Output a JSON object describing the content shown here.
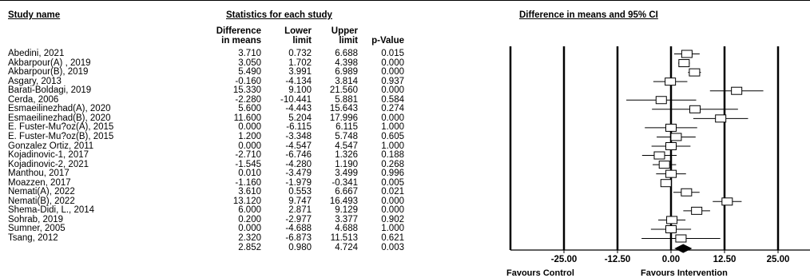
{
  "headers": {
    "study_name": "Study name",
    "statistics": "Statistics for each study",
    "ci": "Difference in means and 95% CI"
  },
  "subheaders": {
    "diff": [
      "Difference",
      "in means"
    ],
    "lower": [
      "Lower",
      "limit"
    ],
    "upper": [
      "Upper",
      "limit"
    ],
    "pvalue": "p-Value"
  },
  "rows": [
    {
      "study": "Abedini, 2021",
      "diff": "3.710",
      "lower": "0.732",
      "upper": "6.688",
      "p": "0.015"
    },
    {
      "study": "Akbarpour(A) , 2019",
      "diff": "3.050",
      "lower": "1.702",
      "upper": "4.398",
      "p": "0.000"
    },
    {
      "study": "Akbarpour(B), 2019",
      "diff": "5.490",
      "lower": "3.991",
      "upper": "6.989",
      "p": "0.000"
    },
    {
      "study": "Asgary, 2013",
      "diff": "-0.160",
      "lower": "-4.134",
      "upper": "3.814",
      "p": "0.937"
    },
    {
      "study": "Barati-Boldagi, 2019",
      "diff": "15.330",
      "lower": "9.100",
      "upper": "21.560",
      "p": "0.000"
    },
    {
      "study": "Cerda, 2006",
      "diff": "-2.280",
      "lower": "-10.441",
      "upper": "5.881",
      "p": "0.584"
    },
    {
      "study": "Esmaeilinezhad(A), 2020",
      "diff": "5.600",
      "lower": "-4.443",
      "upper": "15.643",
      "p": "0.274"
    },
    {
      "study": "Esmaeilinezhad(B), 2020",
      "diff": "11.600",
      "lower": "5.204",
      "upper": "17.996",
      "p": "0.000"
    },
    {
      "study": "E. Fuster-Mu?oz(A), 2015",
      "diff": "0.000",
      "lower": "-6.115",
      "upper": "6.115",
      "p": "1.000"
    },
    {
      "study": "E. Fuster-Mu?oz(B), 2015",
      "diff": "1.200",
      "lower": "-3.348",
      "upper": "5.748",
      "p": "0.605"
    },
    {
      "study": "Gonzalez Ortiz, 2011",
      "diff": "0.000",
      "lower": "-4.547",
      "upper": "4.547",
      "p": "1.000"
    },
    {
      "study": "Kojadinovic-1, 2017",
      "diff": "-2.710",
      "lower": "-6.746",
      "upper": "1.326",
      "p": "0.188"
    },
    {
      "study": "Kojadinovic-2, 2021",
      "diff": "-1.545",
      "lower": "-4.280",
      "upper": "1.190",
      "p": "0.268"
    },
    {
      "study": "Manthou, 2017",
      "diff": "0.010",
      "lower": "-3.479",
      "upper": "3.499",
      "p": "0.996"
    },
    {
      "study": "Moazzen, 2017",
      "diff": "-1.160",
      "lower": "-1.979",
      "upper": "-0.341",
      "p": "0.005"
    },
    {
      "study": "Nemati(A), 2022",
      "diff": "3.610",
      "lower": "0.553",
      "upper": "6.667",
      "p": "0.021"
    },
    {
      "study": "Nemati(B), 2022",
      "diff": "13.120",
      "lower": "9.747",
      "upper": "16.493",
      "p": "0.000"
    },
    {
      "study": "Shema-Didi, L., 2014",
      "diff": "6.000",
      "lower": "2.871",
      "upper": "9.129",
      "p": "0.000"
    },
    {
      "study": "Sohrab, 2019",
      "diff": "0.200",
      "lower": "-2.977",
      "upper": "3.377",
      "p": "0.902"
    },
    {
      "study": "Sumner, 2005",
      "diff": "0.000",
      "lower": "-4.688",
      "upper": "4.688",
      "p": "1.000"
    },
    {
      "study": "Tsang, 2012",
      "diff": "2.320",
      "lower": "-6.873",
      "upper": "11.513",
      "p": "0.621"
    }
  ],
  "pooled": {
    "study": "",
    "diff": "2.852",
    "lower": "0.980",
    "upper": "4.724",
    "p": "0.003"
  },
  "favours": {
    "left": "Favours Control",
    "right": "Favours Intervention"
  },
  "chart_data": {
    "type": "forest",
    "title": "Difference in means and 95% CI",
    "xlim": [
      -25,
      25
    ],
    "xticks": [
      "-25.00",
      "-12.50",
      "0.00",
      "12.50",
      "25.00"
    ],
    "xtick_values": [
      -25,
      -12.5,
      0,
      12.5,
      25
    ],
    "series": [
      {
        "name": "Abedini, 2021",
        "value": 3.71,
        "lower": 0.732,
        "upper": 6.688
      },
      {
        "name": "Akbarpour(A) , 2019",
        "value": 3.05,
        "lower": 1.702,
        "upper": 4.398
      },
      {
        "name": "Akbarpour(B), 2019",
        "value": 5.49,
        "lower": 3.991,
        "upper": 6.989
      },
      {
        "name": "Asgary, 2013",
        "value": -0.16,
        "lower": -4.134,
        "upper": 3.814
      },
      {
        "name": "Barati-Boldagi, 2019",
        "value": 15.33,
        "lower": 9.1,
        "upper": 21.56
      },
      {
        "name": "Cerda, 2006",
        "value": -2.28,
        "lower": -10.441,
        "upper": 5.881
      },
      {
        "name": "Esmaeilinezhad(A), 2020",
        "value": 5.6,
        "lower": -4.443,
        "upper": 15.643
      },
      {
        "name": "Esmaeilinezhad(B), 2020",
        "value": 11.6,
        "lower": 5.204,
        "upper": 17.996
      },
      {
        "name": "E. Fuster-Mu?oz(A), 2015",
        "value": 0.0,
        "lower": -6.115,
        "upper": 6.115
      },
      {
        "name": "E. Fuster-Mu?oz(B), 2015",
        "value": 1.2,
        "lower": -3.348,
        "upper": 5.748
      },
      {
        "name": "Gonzalez Ortiz, 2011",
        "value": 0.0,
        "lower": -4.547,
        "upper": 4.547
      },
      {
        "name": "Kojadinovic-1, 2017",
        "value": -2.71,
        "lower": -6.746,
        "upper": 1.326
      },
      {
        "name": "Kojadinovic-2, 2021",
        "value": -1.545,
        "lower": -4.28,
        "upper": 1.19
      },
      {
        "name": "Manthou, 2017",
        "value": 0.01,
        "lower": -3.479,
        "upper": 3.499
      },
      {
        "name": "Moazzen, 2017",
        "value": -1.16,
        "lower": -1.979,
        "upper": -0.341
      },
      {
        "name": "Nemati(A), 2022",
        "value": 3.61,
        "lower": 0.553,
        "upper": 6.667
      },
      {
        "name": "Nemati(B), 2022",
        "value": 13.12,
        "lower": 9.747,
        "upper": 16.493
      },
      {
        "name": "Shema-Didi, L., 2014",
        "value": 6.0,
        "lower": 2.871,
        "upper": 9.129
      },
      {
        "name": "Sohrab, 2019",
        "value": 0.2,
        "lower": -2.977,
        "upper": 3.377
      },
      {
        "name": "Sumner, 2005",
        "value": 0.0,
        "lower": -4.688,
        "upper": 4.688
      },
      {
        "name": "Tsang, 2012",
        "value": 2.32,
        "lower": -6.873,
        "upper": 11.513
      }
    ],
    "pooled": {
      "value": 2.852,
      "lower": 0.98,
      "upper": 4.724
    },
    "xlabel_left": "Favours Control",
    "xlabel_right": "Favours Intervention"
  }
}
